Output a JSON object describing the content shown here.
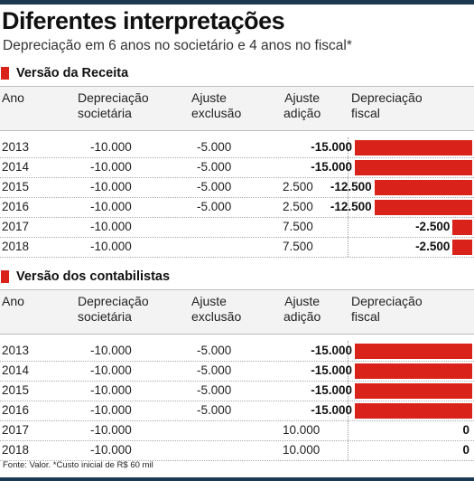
{
  "title": "Diferentes interpretações",
  "subtitle": "Depreciação em 6 anos no societário e 4 anos no fiscal*",
  "headers": {
    "ano": "Ano",
    "dep_soc": [
      "Depreciação",
      "societária"
    ],
    "ajuste_exc": [
      "Ajuste",
      "exclusão"
    ],
    "ajuste_adi": [
      "Ajuste",
      "adição"
    ],
    "dep_fiscal": [
      "Depreciação",
      "fiscal"
    ]
  },
  "source": "Fonte: Valor. *Custo inicial de R$ 60 mil",
  "colors": {
    "accent": "#d9231a",
    "rule": "#1b3a52"
  },
  "chart_data": [
    {
      "type": "table",
      "title": "Versão da Receita",
      "rows": [
        {
          "ano": "2013",
          "dep_soc": "-10.000",
          "ajuste_exc": "-5.000",
          "ajuste_adi": "",
          "dep_fiscal_label": "-15.000",
          "dep_fiscal": -15000
        },
        {
          "ano": "2014",
          "dep_soc": "-10.000",
          "ajuste_exc": "-5.000",
          "ajuste_adi": "",
          "dep_fiscal_label": "-15.000",
          "dep_fiscal": -15000
        },
        {
          "ano": "2015",
          "dep_soc": "-10.000",
          "ajuste_exc": "-5.000",
          "ajuste_adi": "2.500",
          "dep_fiscal_label": "-12.500",
          "dep_fiscal": -12500
        },
        {
          "ano": "2016",
          "dep_soc": "-10.000",
          "ajuste_exc": "-5.000",
          "ajuste_adi": "2.500",
          "dep_fiscal_label": "-12.500",
          "dep_fiscal": -12500
        },
        {
          "ano": "2017",
          "dep_soc": "-10.000",
          "ajuste_exc": "",
          "ajuste_adi": "7.500",
          "dep_fiscal_label": "-2.500",
          "dep_fiscal": -2500
        },
        {
          "ano": "2018",
          "dep_soc": "-10.000",
          "ajuste_exc": "",
          "ajuste_adi": "7.500",
          "dep_fiscal_label": "-2.500",
          "dep_fiscal": -2500
        }
      ]
    },
    {
      "type": "table",
      "title": "Versão dos contabilistas",
      "rows": [
        {
          "ano": "2013",
          "dep_soc": "-10.000",
          "ajuste_exc": "-5.000",
          "ajuste_adi": "",
          "dep_fiscal_label": "-15.000",
          "dep_fiscal": -15000
        },
        {
          "ano": "2014",
          "dep_soc": "-10.000",
          "ajuste_exc": "-5.000",
          "ajuste_adi": "",
          "dep_fiscal_label": "-15.000",
          "dep_fiscal": -15000
        },
        {
          "ano": "2015",
          "dep_soc": "-10.000",
          "ajuste_exc": "-5.000",
          "ajuste_adi": "",
          "dep_fiscal_label": "-15.000",
          "dep_fiscal": -15000
        },
        {
          "ano": "2016",
          "dep_soc": "-10.000",
          "ajuste_exc": "-5.000",
          "ajuste_adi": "",
          "dep_fiscal_label": "-15.000",
          "dep_fiscal": -15000
        },
        {
          "ano": "2017",
          "dep_soc": "-10.000",
          "ajuste_exc": "",
          "ajuste_adi": "10.000",
          "dep_fiscal_label": "0",
          "dep_fiscal": 0
        },
        {
          "ano": "2018",
          "dep_soc": "-10.000",
          "ajuste_exc": "",
          "ajuste_adi": "10.000",
          "dep_fiscal_label": "0",
          "dep_fiscal": 0
        }
      ]
    }
  ]
}
